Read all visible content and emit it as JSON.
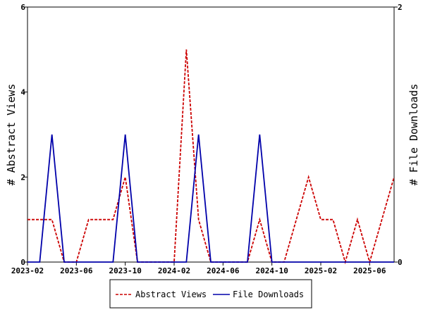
{
  "chart_data": {
    "type": "line",
    "x": [
      "2023-02",
      "2023-03",
      "2023-04",
      "2023-05",
      "2023-06",
      "2023-07",
      "2023-08",
      "2023-09",
      "2023-10",
      "2023-11",
      "2023-12",
      "2024-01",
      "2024-02",
      "2024-03",
      "2024-04",
      "2024-05",
      "2024-06",
      "2024-07",
      "2024-08",
      "2024-09",
      "2024-10",
      "2024-11",
      "2024-12",
      "2025-01",
      "2025-02",
      "2025-03",
      "2025-04",
      "2025-05",
      "2025-06",
      "2025-07",
      "2025-08"
    ],
    "x_tick_labels": [
      "2023-02",
      "2023-06",
      "2023-10",
      "2024-02",
      "2024-06",
      "2024-10",
      "2025-02",
      "2025-06"
    ],
    "series": [
      {
        "name": "Abstract Views",
        "axis": "left",
        "color": "#cc0000",
        "style": "dashed",
        "values": [
          1,
          1,
          1,
          0,
          0,
          1,
          1,
          1,
          2,
          0,
          0,
          0,
          0,
          5,
          1,
          0,
          0,
          0,
          0,
          1,
          0,
          0,
          1,
          2,
          1,
          1,
          0,
          1,
          0,
          1,
          2
        ]
      },
      {
        "name": "File Downloads",
        "axis": "right",
        "color": "#0000aa",
        "style": "solid",
        "values": [
          0,
          0,
          1,
          0,
          0,
          0,
          0,
          0,
          1,
          0,
          0,
          0,
          0,
          0,
          1,
          0,
          0,
          0,
          0,
          1,
          0,
          0,
          0,
          0,
          0,
          0,
          0,
          0,
          0,
          0,
          0
        ]
      }
    ],
    "ylabel": "# Abstract Views",
    "ylim": [
      0,
      6
    ],
    "y_ticks": [
      "0",
      "2",
      "4",
      "6"
    ],
    "y2label": "# File Downloads",
    "y2lim": [
      0,
      2
    ],
    "y2_ticks": [
      "0",
      "2"
    ],
    "legend_position": "bottom-center",
    "grid": false
  }
}
